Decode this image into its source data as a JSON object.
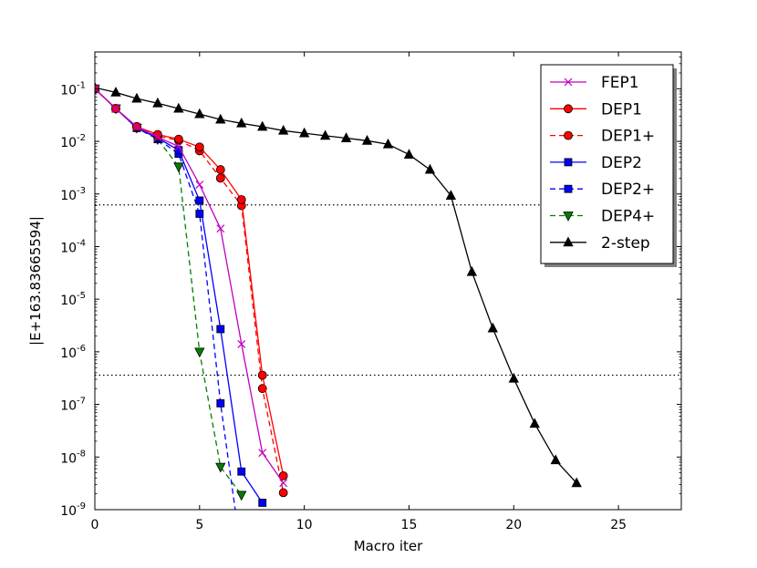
{
  "chart_data": {
    "type": "line",
    "yscale": "log",
    "xlabel": "Macro iter",
    "ylabel": "|E+163.83665594|",
    "xlim": [
      0,
      28
    ],
    "ylim": [
      1e-09,
      0.5
    ],
    "xticks": [
      {
        "value": 0,
        "label": "0"
      },
      {
        "value": 5,
        "label": "5"
      },
      {
        "value": 10,
        "label": "10"
      },
      {
        "value": 15,
        "label": "15"
      },
      {
        "value": 20,
        "label": "20"
      },
      {
        "value": 25,
        "label": "25"
      }
    ],
    "yticks": [
      {
        "value": 1e-09,
        "base": "10",
        "exp": "-9"
      },
      {
        "value": 1e-08,
        "base": "10",
        "exp": "-8"
      },
      {
        "value": 1e-07,
        "base": "10",
        "exp": "-7"
      },
      {
        "value": 1e-06,
        "base": "10",
        "exp": "-6"
      },
      {
        "value": 1e-05,
        "base": "10",
        "exp": "-5"
      },
      {
        "value": 0.0001,
        "base": "10",
        "exp": "-4"
      },
      {
        "value": 0.001,
        "base": "10",
        "exp": "-3"
      },
      {
        "value": 0.01,
        "base": "10",
        "exp": "-2"
      },
      {
        "value": 0.1,
        "base": "10",
        "exp": "-1"
      }
    ],
    "hlines": [
      {
        "y": 0.00062,
        "style": "dotted",
        "color": "#000000"
      },
      {
        "y": 3.6e-07,
        "style": "dotted",
        "color": "#000000"
      }
    ],
    "legend_position": "top-right",
    "series": [
      {
        "name": "FEP1",
        "color": "#bf00bf",
        "marker": "x",
        "dash": "solid",
        "x": [
          0,
          1,
          2,
          3,
          4,
          5,
          6,
          7,
          8,
          9
        ],
        "y": [
          0.1,
          0.042,
          0.019,
          0.012,
          0.008,
          0.0015,
          0.00022,
          1.4e-06,
          1.2e-08,
          3.2e-09
        ]
      },
      {
        "name": "DEP1",
        "color": "#ff0000",
        "marker": "o",
        "dash": "solid",
        "x": [
          0,
          1,
          2,
          3,
          4,
          5,
          6,
          7,
          8,
          9
        ],
        "y": [
          0.1,
          0.042,
          0.019,
          0.0135,
          0.011,
          0.0078,
          0.0029,
          0.00078,
          3.6e-07,
          4.4e-09
        ]
      },
      {
        "name": "DEP1+",
        "color": "#ff0000",
        "marker": "o",
        "dash": "dashed",
        "x": [
          0,
          1,
          2,
          3,
          4,
          5,
          6,
          7,
          8,
          9
        ],
        "y": [
          0.1,
          0.042,
          0.019,
          0.0125,
          0.0105,
          0.0066,
          0.002,
          0.0006,
          2e-07,
          2.1e-09
        ]
      },
      {
        "name": "DEP2",
        "color": "#0000ff",
        "marker": "s",
        "dash": "solid",
        "x": [
          0,
          1,
          2,
          3,
          4,
          5,
          6,
          7,
          8
        ],
        "y": [
          0.1,
          0.042,
          0.018,
          0.0115,
          0.0068,
          0.00075,
          2.7e-06,
          5.3e-09,
          1.35e-09
        ]
      },
      {
        "name": "DEP2+",
        "color": "#0000ff",
        "marker": "s",
        "dash": "dashed",
        "x": [
          0,
          1,
          2,
          3,
          4,
          5,
          6,
          6.7
        ],
        "y": [
          0.1,
          0.042,
          0.018,
          0.011,
          0.0058,
          0.00042,
          1.05e-07,
          1e-09
        ]
      },
      {
        "name": "DEP4+",
        "color": "#007f00",
        "marker": "v",
        "dash": "dashed",
        "x": [
          0,
          1,
          2,
          3,
          4,
          5,
          6,
          7
        ],
        "y": [
          0.1,
          0.042,
          0.018,
          0.011,
          0.0033,
          1e-06,
          6.5e-09,
          1.9e-09
        ]
      },
      {
        "name": "2-step",
        "color": "#000000",
        "marker": "^",
        "dash": "solid",
        "x": [
          0,
          1,
          2,
          3,
          4,
          5,
          6,
          7,
          8,
          9,
          10,
          11,
          12,
          13,
          14,
          15,
          16,
          17,
          18,
          19,
          20,
          21,
          22,
          23
        ],
        "y": [
          0.105,
          0.085,
          0.065,
          0.053,
          0.042,
          0.033,
          0.026,
          0.022,
          0.019,
          0.016,
          0.0143,
          0.0128,
          0.0115,
          0.0103,
          0.0088,
          0.0056,
          0.0029,
          0.00093,
          3.3e-05,
          2.8e-06,
          3.1e-07,
          4.3e-08,
          8.7e-09,
          3.2e-09
        ]
      }
    ]
  }
}
